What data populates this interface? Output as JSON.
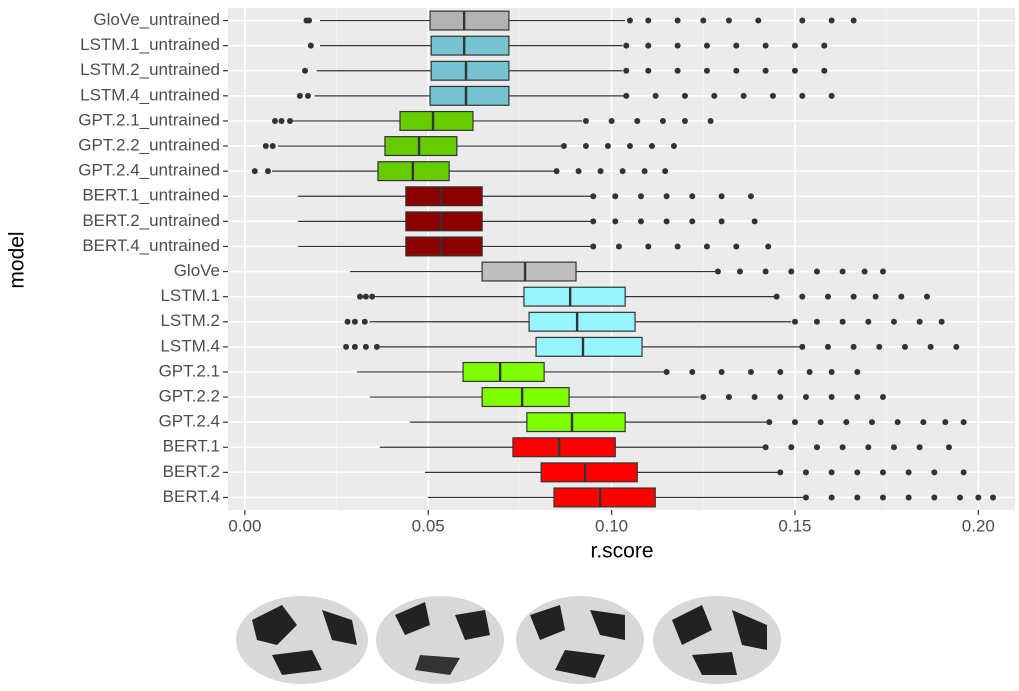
{
  "chart_data": {
    "type": "box",
    "orientation": "horizontal",
    "x_label": "r.score",
    "y_label": "model",
    "categories": [
      "GloVe_untrained",
      "LSTM.1_untrained",
      "LSTM.2_untrained",
      "LSTM.4_untrained",
      "GPT.2.1_untrained",
      "GPT.2.2_untrained",
      "GPT.2.4_untrained",
      "BERT.1_untrained",
      "BERT.2_untrained",
      "BERT.4_untrained",
      "GloVe",
      "LSTM.1",
      "LSTM.2",
      "LSTM.4",
      "GPT.2.1",
      "GPT.2.2",
      "GPT.2.4",
      "BERT.1",
      "BERT.2",
      "BERT.4"
    ],
    "colors": [
      "#b3b3b3",
      "#74c3cf",
      "#74c3cf",
      "#74c3cf",
      "#66cc00",
      "#66cc00",
      "#66cc00",
      "#8b0000",
      "#8b0000",
      "#8b0000",
      "#bebebe",
      "#98f5ff",
      "#98f5ff",
      "#98f5ff",
      "#7fff00",
      "#7fff00",
      "#7fff00",
      "#ff0000",
      "#ff0000",
      "#ff0000"
    ],
    "boxes": [
      {
        "whisker_low": 0.0205,
        "q1": 0.0505,
        "median": 0.0598,
        "q3": 0.072,
        "whisker_high": 0.1037,
        "outliers": [
          0.0168,
          0.0175,
          0.105,
          0.11,
          0.118,
          0.125,
          0.132,
          0.14,
          0.152,
          0.16,
          0.166
        ]
      },
      {
        "whisker_low": 0.0205,
        "q1": 0.0508,
        "median": 0.0598,
        "q3": 0.072,
        "whisker_high": 0.103,
        "outliers": [
          0.018,
          0.104,
          0.11,
          0.118,
          0.126,
          0.134,
          0.142,
          0.15,
          0.158
        ]
      },
      {
        "whisker_low": 0.0196,
        "q1": 0.0508,
        "median": 0.0603,
        "q3": 0.072,
        "whisker_high": 0.103,
        "outliers": [
          0.0164,
          0.104,
          0.11,
          0.118,
          0.126,
          0.134,
          0.142,
          0.15,
          0.158
        ]
      },
      {
        "whisker_low": 0.019,
        "q1": 0.0505,
        "median": 0.0603,
        "q3": 0.072,
        "whisker_high": 0.1037,
        "outliers": [
          0.015,
          0.0172,
          0.104,
          0.112,
          0.12,
          0.128,
          0.136,
          0.144,
          0.152,
          0.16
        ]
      },
      {
        "whisker_low": 0.013,
        "q1": 0.0423,
        "median": 0.0513,
        "q3": 0.0622,
        "whisker_high": 0.092,
        "outliers": [
          0.0082,
          0.01,
          0.0123,
          0.093,
          0.1,
          0.107,
          0.114,
          0.12,
          0.127
        ]
      },
      {
        "whisker_low": 0.009,
        "q1": 0.0382,
        "median": 0.0475,
        "q3": 0.0578,
        "whisker_high": 0.0865,
        "outliers": [
          0.0057,
          0.0076,
          0.087,
          0.093,
          0.099,
          0.105,
          0.111,
          0.117
        ]
      },
      {
        "whisker_low": 0.0074,
        "q1": 0.0363,
        "median": 0.0458,
        "q3": 0.0557,
        "whisker_high": 0.0846,
        "outliers": [
          0.0027,
          0.0063,
          0.085,
          0.091,
          0.097,
          0.103,
          0.109,
          0.1146
        ]
      },
      {
        "whisker_low": 0.0145,
        "q1": 0.0439,
        "median": 0.0535,
        "q3": 0.0647,
        "whisker_high": 0.0947,
        "outliers": [
          0.095,
          0.101,
          0.108,
          0.115,
          0.122,
          0.13,
          0.138
        ]
      },
      {
        "whisker_low": 0.0145,
        "q1": 0.0439,
        "median": 0.0535,
        "q3": 0.0647,
        "whisker_high": 0.0947,
        "outliers": [
          0.095,
          0.101,
          0.108,
          0.115,
          0.122,
          0.13,
          0.139
        ]
      },
      {
        "whisker_low": 0.0145,
        "q1": 0.0439,
        "median": 0.0535,
        "q3": 0.0647,
        "whisker_high": 0.0947,
        "outliers": [
          0.095,
          0.102,
          0.11,
          0.118,
          0.126,
          0.134,
          0.1427
        ]
      },
      {
        "whisker_low": 0.0287,
        "q1": 0.0647,
        "median": 0.0764,
        "q3": 0.0903,
        "whisker_high": 0.1282,
        "outliers": [
          0.129,
          0.135,
          0.142,
          0.149,
          0.156,
          0.163,
          0.169,
          0.174
        ]
      },
      {
        "whisker_low": 0.0355,
        "q1": 0.0761,
        "median": 0.0887,
        "q3": 0.1037,
        "whisker_high": 0.1446,
        "outliers": [
          0.0314,
          0.033,
          0.0347,
          0.145,
          0.152,
          0.159,
          0.166,
          0.172,
          0.179,
          0.186
        ]
      },
      {
        "whisker_low": 0.034,
        "q1": 0.0775,
        "median": 0.0906,
        "q3": 0.1064,
        "whisker_high": 0.149,
        "outliers": [
          0.028,
          0.03,
          0.0327,
          0.15,
          0.156,
          0.163,
          0.17,
          0.177,
          0.184,
          0.19
        ]
      },
      {
        "whisker_low": 0.0368,
        "q1": 0.0794,
        "median": 0.0922,
        "q3": 0.1083,
        "whisker_high": 0.1514,
        "outliers": [
          0.0276,
          0.03,
          0.033,
          0.036,
          0.152,
          0.159,
          0.166,
          0.173,
          0.18,
          0.187,
          0.194
        ]
      },
      {
        "whisker_low": 0.0306,
        "q1": 0.0595,
        "median": 0.0696,
        "q3": 0.0816,
        "whisker_high": 0.1146,
        "outliers": [
          0.115,
          0.122,
          0.13,
          0.138,
          0.146,
          0.154,
          0.16,
          0.167
        ]
      },
      {
        "whisker_low": 0.0341,
        "q1": 0.0647,
        "median": 0.0756,
        "q3": 0.0884,
        "whisker_high": 0.124,
        "outliers": [
          0.125,
          0.132,
          0.139,
          0.146,
          0.153,
          0.16,
          0.167,
          0.174
        ]
      },
      {
        "whisker_low": 0.045,
        "q1": 0.0769,
        "median": 0.0892,
        "q3": 0.1037,
        "whisker_high": 0.1427,
        "outliers": [
          0.143,
          0.15,
          0.157,
          0.164,
          0.171,
          0.178,
          0.185,
          0.191,
          0.196
        ]
      },
      {
        "whisker_low": 0.0368,
        "q1": 0.0731,
        "median": 0.0857,
        "q3": 0.101,
        "whisker_high": 0.142,
        "outliers": [
          0.142,
          0.149,
          0.156,
          0.163,
          0.17,
          0.177,
          0.184,
          0.192
        ]
      },
      {
        "whisker_low": 0.0491,
        "q1": 0.0808,
        "median": 0.0928,
        "q3": 0.107,
        "whisker_high": 0.1454,
        "outliers": [
          0.146,
          0.153,
          0.16,
          0.167,
          0.174,
          0.181,
          0.188,
          0.196
        ]
      },
      {
        "whisker_low": 0.0499,
        "q1": 0.0843,
        "median": 0.0969,
        "q3": 0.1119,
        "whisker_high": 0.1528,
        "outliers": [
          0.153,
          0.16,
          0.167,
          0.174,
          0.181,
          0.188,
          0.195,
          0.2,
          0.204
        ]
      }
    ],
    "xlim": [
      -0.0046,
      0.21
    ],
    "xticks": [
      {
        "value": 0,
        "label": "0.00"
      },
      0.05,
      {
        "value": 0.1,
        "label": "0.10"
      },
      0.15,
      {
        "value": 0.2,
        "label": "0.20"
      }
    ],
    "grid": true
  }
}
